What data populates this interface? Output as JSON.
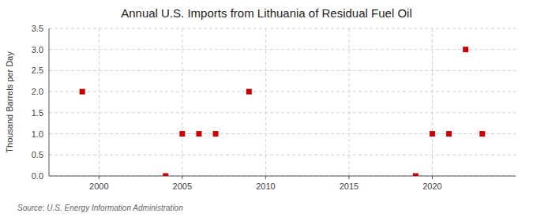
{
  "chart_data": {
    "type": "scatter",
    "title": "Annual U.S. Imports from Lithuania of Residual Fuel Oil",
    "ylabel": "Thousand Barrels per Day",
    "source": "Source: U.S. Energy Information Administration",
    "x": [
      1999,
      2004,
      2005,
      2006,
      2007,
      2009,
      2019,
      2020,
      2021,
      2022,
      2023
    ],
    "values": [
      2.0,
      0.0,
      1.0,
      1.0,
      1.0,
      2.0,
      0.0,
      1.0,
      1.0,
      3.0,
      1.0
    ],
    "color": "#cc0000",
    "marker": "square",
    "xlim": [
      1997,
      2025
    ],
    "ylim": [
      0,
      3.5
    ],
    "xticks": [
      2000,
      2005,
      2010,
      2015,
      2020
    ],
    "yticks": [
      {
        "value": 0.0,
        "label": "0.0"
      },
      0.5,
      {
        "value": 1.0,
        "label": "1.0"
      },
      1.5,
      {
        "value": 2.0,
        "label": "2.0"
      },
      2.5,
      {
        "value": 3.0,
        "label": "3.0"
      },
      3.5
    ],
    "grid": true
  }
}
